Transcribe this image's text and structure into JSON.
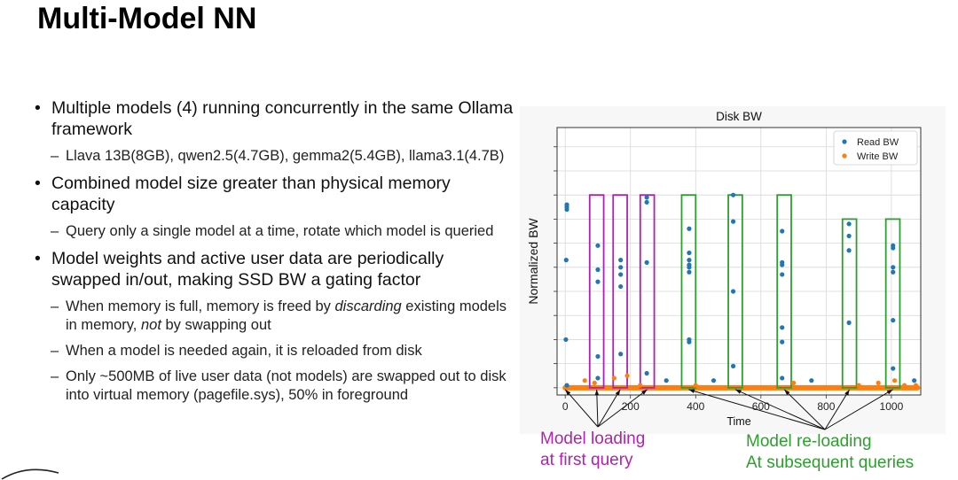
{
  "slide": {
    "title": "Multi-Model NN"
  },
  "bullets": [
    {
      "text": "Multiple models (4) running concurrently in the same Ollama framework",
      "subs": [
        "Llava 13B(8GB), qwen2.5(4.7GB), gemma2(5.4GB), llama3.1(4.7B)"
      ]
    },
    {
      "text": "Combined model size greater than physical memory capacity",
      "subs": [
        "Query only a single model at a time, rotate which model is queried"
      ]
    },
    {
      "text": "Model weights and active user data are periodically swapped in/out, making SSD BW a gating factor",
      "subs": [
        "When memory is full, memory is freed by discarding existing models in memory, not by swapping out",
        "When a model is needed again, it is reloaded from disk",
        "Only ~500MB of live user data (not models) are swapped out to disk into virtual memory (pagefile.sys), 50% in foreground"
      ]
    }
  ],
  "annotations": {
    "first_load": "Model loading at first query",
    "first_load_color": "#b31fb3",
    "reload": "Model re-loading At subsequent queries",
    "reload_color": "#2ca02c"
  },
  "chart_data": {
    "type": "scatter",
    "title": "Disk BW",
    "xlabel": "Time",
    "ylabel": "Normalized BW",
    "xlim": [
      -25,
      1090
    ],
    "ylim": [
      -0.03,
      1.08
    ],
    "x_ticks": [
      0,
      200,
      400,
      600,
      800,
      1000
    ],
    "grid": true,
    "legend_position": "top-right",
    "series": [
      {
        "name": "Read BW",
        "color": "#1f77b4",
        "points": [
          [
            5,
            0.75
          ],
          [
            5,
            0.74
          ],
          [
            5,
            0.76
          ],
          [
            3,
            0.53
          ],
          [
            2,
            0.2
          ],
          [
            5,
            0.01
          ],
          [
            100,
            0.59
          ],
          [
            100,
            0.49
          ],
          [
            100,
            0.44
          ],
          [
            100,
            0.13
          ],
          [
            100,
            0.04
          ],
          [
            170,
            0.53
          ],
          [
            170,
            0.5
          ],
          [
            170,
            0.47
          ],
          [
            170,
            0.42
          ],
          [
            170,
            0.14
          ],
          [
            250,
            0.79
          ],
          [
            250,
            0.77
          ],
          [
            250,
            0.52
          ],
          [
            250,
            0.06
          ],
          [
            380,
            0.66
          ],
          [
            380,
            0.56
          ],
          [
            380,
            0.53
          ],
          [
            380,
            0.51
          ],
          [
            380,
            0.5
          ],
          [
            380,
            0.48
          ],
          [
            380,
            0.2
          ],
          [
            380,
            0.19
          ],
          [
            515,
            0.8
          ],
          [
            515,
            0.69
          ],
          [
            515,
            0.4
          ],
          [
            515,
            0.09
          ],
          [
            665,
            0.65
          ],
          [
            665,
            0.52
          ],
          [
            665,
            0.51
          ],
          [
            665,
            0.47
          ],
          [
            665,
            0.25
          ],
          [
            665,
            0.19
          ],
          [
            665,
            0.04
          ],
          [
            870,
            0.68
          ],
          [
            870,
            0.63
          ],
          [
            870,
            0.57
          ],
          [
            870,
            0.27
          ],
          [
            1005,
            0.59
          ],
          [
            1005,
            0.58
          ],
          [
            1005,
            0.5
          ],
          [
            1005,
            0.48
          ],
          [
            1005,
            0.28
          ],
          [
            1005,
            0.08
          ],
          [
            310,
            0.03
          ],
          [
            455,
            0.03
          ],
          [
            755,
            0.03
          ],
          [
            1070,
            0.03
          ]
        ]
      },
      {
        "name": "Write BW",
        "color": "#ff7f0e",
        "points": [
          [
            60,
            0.03
          ],
          [
            90,
            0.02
          ],
          [
            150,
            0.04
          ],
          [
            190,
            0.05
          ],
          [
            230,
            0.01
          ],
          [
            400,
            0.01
          ],
          [
            700,
            0.02
          ],
          [
            900,
            0.01
          ],
          [
            960,
            0.02
          ],
          [
            1010,
            0.03
          ],
          [
            1040,
            0.01
          ],
          [
            1075,
            0.01
          ]
        ],
        "baseline": {
          "from": 0,
          "to": 1080,
          "value": 0.0
        }
      }
    ],
    "highlight_boxes": [
      {
        "group": "first_load",
        "x_from": 75,
        "x_to": 118,
        "y_top": 0.8
      },
      {
        "group": "first_load",
        "x_from": 147,
        "x_to": 190,
        "y_top": 0.8
      },
      {
        "group": "first_load",
        "x_from": 230,
        "x_to": 273,
        "y_top": 0.8
      },
      {
        "group": "reload",
        "x_from": 357,
        "x_to": 400,
        "y_top": 0.8
      },
      {
        "group": "reload",
        "x_from": 500,
        "x_to": 543,
        "y_top": 0.8
      },
      {
        "group": "reload",
        "x_from": 650,
        "x_to": 693,
        "y_top": 0.8
      },
      {
        "group": "reload",
        "x_from": 850,
        "x_to": 893,
        "y_top": 0.7
      },
      {
        "group": "reload",
        "x_from": 983,
        "x_to": 1026,
        "y_top": 0.7
      }
    ]
  }
}
